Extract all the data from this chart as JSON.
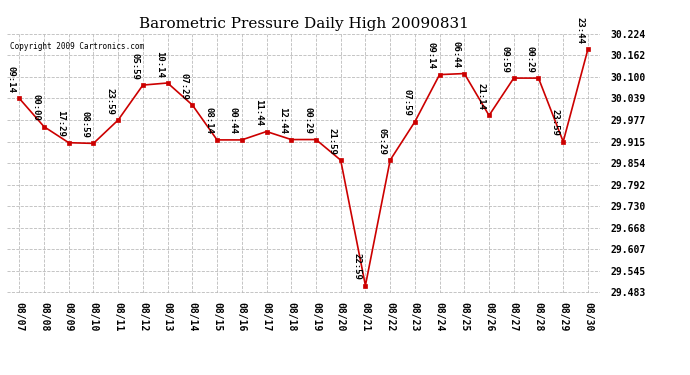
{
  "title": "Barometric Pressure Daily High 20090831",
  "copyright": "Copyright 2009 Cartronics.com",
  "x_labels": [
    "08/07",
    "08/08",
    "08/09",
    "08/10",
    "08/11",
    "08/12",
    "08/13",
    "08/14",
    "08/15",
    "08/16",
    "08/17",
    "08/18",
    "08/19",
    "08/20",
    "08/21",
    "08/22",
    "08/23",
    "08/24",
    "08/25",
    "08/26",
    "08/27",
    "08/28",
    "08/29",
    "08/30"
  ],
  "y_values": [
    30.039,
    29.958,
    29.912,
    29.91,
    29.977,
    30.077,
    30.083,
    30.02,
    29.92,
    29.92,
    29.944,
    29.921,
    29.921,
    29.862,
    29.503,
    29.862,
    29.972,
    30.107,
    30.11,
    29.99,
    30.097,
    30.097,
    29.915,
    30.18
  ],
  "point_labels": [
    "09:14",
    "00:00",
    "17:29",
    "08:59",
    "23:59",
    "05:59",
    "10:14",
    "07:29",
    "08:14",
    "00:44",
    "11:44",
    "12:44",
    "00:29",
    "21:59",
    "22:59",
    "05:29",
    "07:59",
    "09:14",
    "06:44",
    "21:14",
    "09:59",
    "00:29",
    "23:59",
    "23:44"
  ],
  "ylim_min": 29.483,
  "ylim_max": 30.224,
  "ytick_values": [
    29.483,
    29.545,
    29.607,
    29.668,
    29.73,
    29.792,
    29.854,
    29.915,
    29.977,
    30.039,
    30.1,
    30.162,
    30.224
  ],
  "line_color": "#cc0000",
  "marker_color": "#cc0000",
  "bg_color": "#ffffff",
  "grid_color": "#bbbbbb",
  "title_fontsize": 11,
  "label_fontsize": 7,
  "annotation_fontsize": 6.5
}
